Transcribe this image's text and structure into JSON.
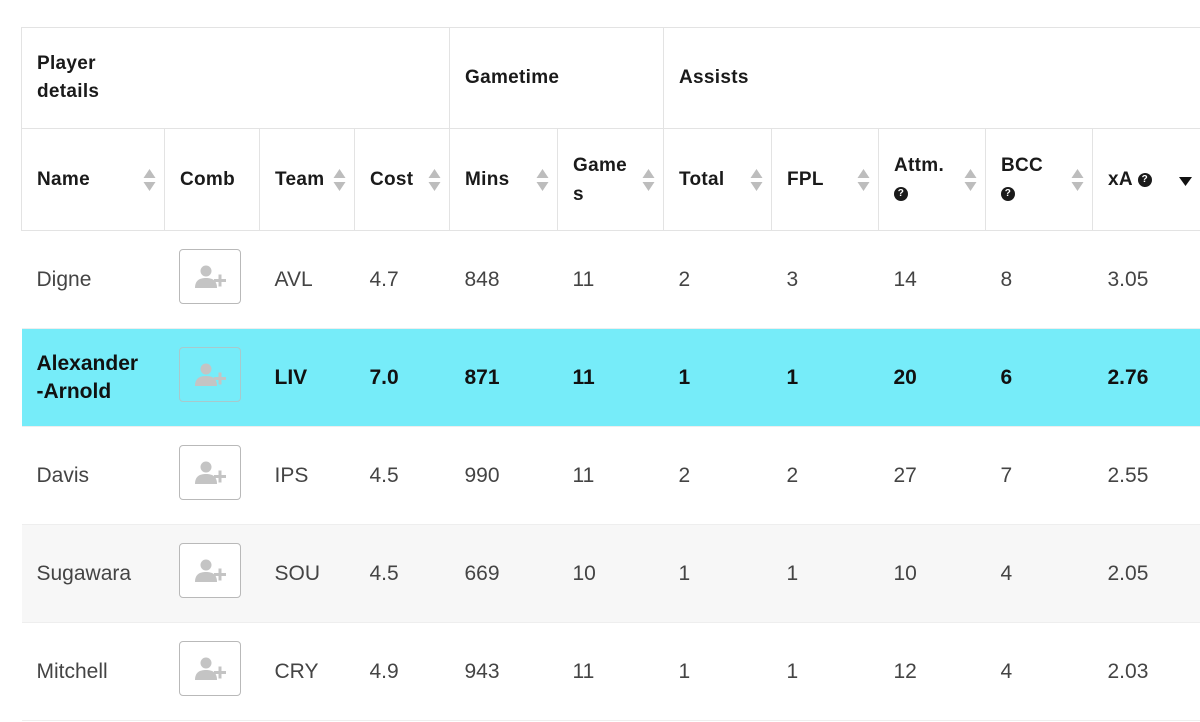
{
  "groups": [
    {
      "label": "Player details",
      "span": 2
    },
    {
      "label": "",
      "span": 2
    },
    {
      "label": "Gametime",
      "span": 2
    },
    {
      "label": "Assists",
      "span": 5
    }
  ],
  "group_labels": {
    "player_details": "Player details",
    "gametime": "Gametime",
    "assists": "Assists"
  },
  "columns": {
    "name": "Name",
    "comb": "Comb",
    "team": "Team",
    "cost": "Cost",
    "mins": "Mins",
    "games": "Games",
    "total": "Total",
    "fpl": "FPL",
    "attm": "Attm.",
    "bcc": "BCC",
    "xa": "xA"
  },
  "help_icon": "question-circle-icon",
  "sort_icon": "sort-arrows-icon",
  "active_sort": {
    "column": "xA",
    "direction": "descending"
  },
  "colors": {
    "highlight_row": "#76ecf9",
    "alt_row": "#f7f7f7",
    "border": "#e3e3e3"
  },
  "rows": [
    {
      "name": "Digne",
      "team": "AVL",
      "cost": "4.7",
      "mins": "848",
      "games": "11",
      "total": "2",
      "fpl": "3",
      "attm": "14",
      "bcc": "8",
      "xa": "3.05"
    },
    {
      "name": "Alexander-Arnold",
      "team": "LIV",
      "cost": "7.0",
      "mins": "871",
      "games": "11",
      "total": "1",
      "fpl": "1",
      "attm": "20",
      "bcc": "6",
      "xa": "2.76",
      "highlighted": true
    },
    {
      "name": "Davis",
      "team": "IPS",
      "cost": "4.5",
      "mins": "990",
      "games": "11",
      "total": "2",
      "fpl": "2",
      "attm": "27",
      "bcc": "7",
      "xa": "2.55"
    },
    {
      "name": "Sugawara",
      "team": "SOU",
      "cost": "4.5",
      "mins": "669",
      "games": "10",
      "total": "1",
      "fpl": "1",
      "attm": "10",
      "bcc": "4",
      "xa": "2.05"
    },
    {
      "name": "Mitchell",
      "team": "CRY",
      "cost": "4.9",
      "mins": "943",
      "games": "11",
      "total": "1",
      "fpl": "1",
      "attm": "12",
      "bcc": "4",
      "xa": "2.03"
    }
  ],
  "comb_button_icon": "add-user-icon"
}
